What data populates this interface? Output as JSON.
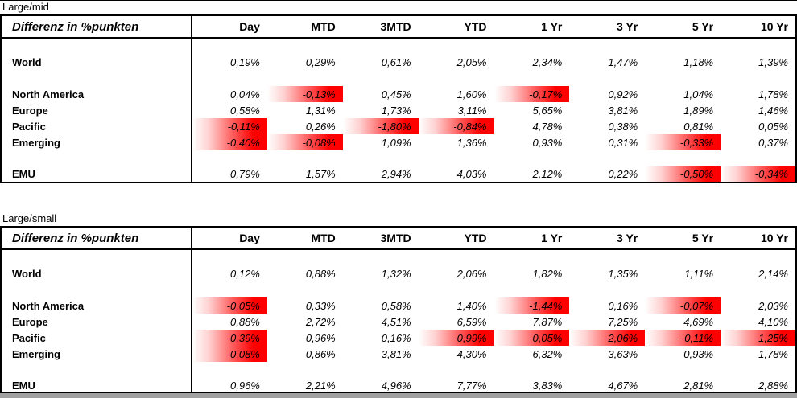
{
  "colors": {
    "negative_highlight": "#ff0000",
    "bottom_strip": "#a0a0a0",
    "border": "#000000"
  },
  "columns": [
    "Day",
    "MTD",
    "3MTD",
    "YTD",
    "1 Yr",
    "3 Yr",
    "5 Yr",
    "10 Yr"
  ],
  "sections": [
    {
      "label": "Large/mid",
      "table_title": "Differenz in %punkten",
      "rows": [
        {
          "label": "",
          "values": [
            "",
            "",
            "",
            "",
            "",
            "",
            "",
            ""
          ]
        },
        {
          "label": "World",
          "values": [
            "0,19%",
            "0,29%",
            "0,61%",
            "2,05%",
            "2,34%",
            "1,47%",
            "1,18%",
            "1,39%"
          ]
        },
        {
          "label": "",
          "values": [
            "",
            "",
            "",
            "",
            "",
            "",
            "",
            ""
          ]
        },
        {
          "label": "North America",
          "values": [
            "0,04%",
            "-0,13%",
            "0,45%",
            "1,60%",
            "-0,17%",
            "0,92%",
            "1,04%",
            "1,78%"
          ]
        },
        {
          "label": "Europe",
          "values": [
            "0,58%",
            "1,31%",
            "1,73%",
            "3,11%",
            "5,65%",
            "3,81%",
            "1,89%",
            "1,46%"
          ]
        },
        {
          "label": "Pacific",
          "values": [
            "-0,11%",
            "0,26%",
            "-1,80%",
            "-0,84%",
            "4,78%",
            "0,38%",
            "0,81%",
            "0,05%"
          ]
        },
        {
          "label": "Emerging",
          "values": [
            "-0,40%",
            "-0,08%",
            "1,09%",
            "1,36%",
            "0,93%",
            "0,31%",
            "-0,33%",
            "0,37%"
          ]
        },
        {
          "label": "",
          "values": [
            "",
            "",
            "",
            "",
            "",
            "",
            "",
            ""
          ]
        },
        {
          "label": "EMU",
          "values": [
            "0,79%",
            "1,57%",
            "2,94%",
            "4,03%",
            "2,12%",
            "0,22%",
            "-0,50%",
            "-0,34%"
          ]
        }
      ]
    },
    {
      "label": "Large/small",
      "table_title": "Differenz in %punkten",
      "rows": [
        {
          "label": "",
          "values": [
            "",
            "",
            "",
            "",
            "",
            "",
            "",
            ""
          ]
        },
        {
          "label": "World",
          "values": [
            "0,12%",
            "0,88%",
            "1,32%",
            "2,06%",
            "1,82%",
            "1,35%",
            "1,11%",
            "2,14%"
          ]
        },
        {
          "label": "",
          "values": [
            "",
            "",
            "",
            "",
            "",
            "",
            "",
            ""
          ]
        },
        {
          "label": "North America",
          "values": [
            "-0,05%",
            "0,33%",
            "0,58%",
            "1,40%",
            "-1,44%",
            "0,16%",
            "-0,07%",
            "2,03%"
          ]
        },
        {
          "label": "Europe",
          "values": [
            "0,88%",
            "2,72%",
            "4,51%",
            "6,59%",
            "7,87%",
            "7,25%",
            "4,69%",
            "4,10%"
          ]
        },
        {
          "label": "Pacific",
          "values": [
            "-0,39%",
            "0,96%",
            "0,16%",
            "-0,99%",
            "-0,05%",
            "-2,06%",
            "-0,11%",
            "-1,25%"
          ]
        },
        {
          "label": "Emerging",
          "values": [
            "-0,08%",
            "0,86%",
            "3,81%",
            "4,30%",
            "6,32%",
            "3,63%",
            "0,93%",
            "1,78%"
          ]
        },
        {
          "label": "",
          "values": [
            "",
            "",
            "",
            "",
            "",
            "",
            "",
            ""
          ]
        },
        {
          "label": "EMU",
          "values": [
            "0,96%",
            "2,21%",
            "4,96%",
            "7,77%",
            "3,83%",
            "4,67%",
            "2,81%",
            "2,88%"
          ]
        }
      ]
    }
  ]
}
